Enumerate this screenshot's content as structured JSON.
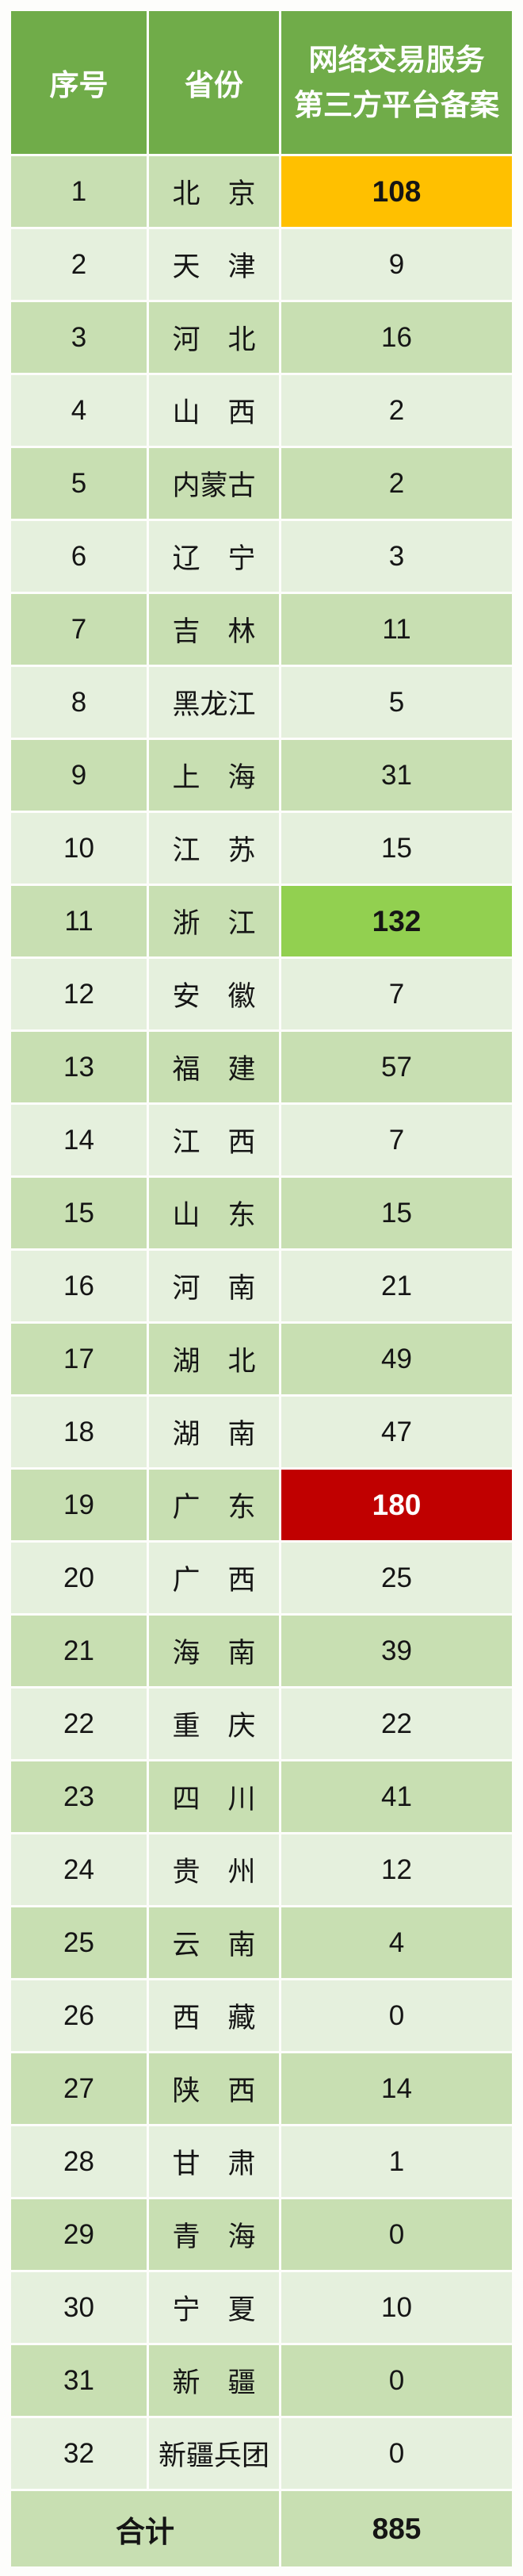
{
  "table": {
    "header": {
      "index": "序号",
      "province": "省份",
      "platform_line1": "网络交易服务",
      "platform_line2": "第三方平台备案"
    },
    "rows": [
      {
        "no": "1",
        "province": "北　京",
        "value": "108",
        "highlight": "orange"
      },
      {
        "no": "2",
        "province": "天　津",
        "value": "9"
      },
      {
        "no": "3",
        "province": "河　北",
        "value": "16"
      },
      {
        "no": "4",
        "province": "山　西",
        "value": "2"
      },
      {
        "no": "5",
        "province": "内蒙古",
        "value": "2"
      },
      {
        "no": "6",
        "province": "辽　宁",
        "value": "3"
      },
      {
        "no": "7",
        "province": "吉　林",
        "value": "11"
      },
      {
        "no": "8",
        "province": "黑龙江",
        "value": "5"
      },
      {
        "no": "9",
        "province": "上　海",
        "value": "31"
      },
      {
        "no": "10",
        "province": "江　苏",
        "value": "15"
      },
      {
        "no": "11",
        "province": "浙　江",
        "value": "132",
        "highlight": "green"
      },
      {
        "no": "12",
        "province": "安　徽",
        "value": "7"
      },
      {
        "no": "13",
        "province": "福　建",
        "value": "57"
      },
      {
        "no": "14",
        "province": "江　西",
        "value": "7"
      },
      {
        "no": "15",
        "province": "山　东",
        "value": "15"
      },
      {
        "no": "16",
        "province": "河　南",
        "value": "21"
      },
      {
        "no": "17",
        "province": "湖　北",
        "value": "49"
      },
      {
        "no": "18",
        "province": "湖　南",
        "value": "47"
      },
      {
        "no": "19",
        "province": "广　东",
        "value": "180",
        "highlight": "red"
      },
      {
        "no": "20",
        "province": "广　西",
        "value": "25"
      },
      {
        "no": "21",
        "province": "海　南",
        "value": "39"
      },
      {
        "no": "22",
        "province": "重　庆",
        "value": "22"
      },
      {
        "no": "23",
        "province": "四　川",
        "value": "41"
      },
      {
        "no": "24",
        "province": "贵　州",
        "value": "12"
      },
      {
        "no": "25",
        "province": "云　南",
        "value": "4"
      },
      {
        "no": "26",
        "province": "西　藏",
        "value": "0"
      },
      {
        "no": "27",
        "province": "陕　西",
        "value": "14"
      },
      {
        "no": "28",
        "province": "甘　肃",
        "value": "1"
      },
      {
        "no": "29",
        "province": "青　海",
        "value": "0"
      },
      {
        "no": "30",
        "province": "宁　夏",
        "value": "10"
      },
      {
        "no": "31",
        "province": "新　疆",
        "value": "0"
      },
      {
        "no": "32",
        "province": "新疆兵团",
        "value": "0"
      }
    ],
    "total": {
      "label": "合计",
      "value": "885"
    }
  },
  "chart_data": {
    "type": "table",
    "title": "网络交易服务第三方平台备案",
    "columns": [
      "序号",
      "省份",
      "网络交易服务第三方平台备案"
    ],
    "categories": [
      "北京",
      "天津",
      "河北",
      "山西",
      "内蒙古",
      "辽宁",
      "吉林",
      "黑龙江",
      "上海",
      "江苏",
      "浙江",
      "安徽",
      "福建",
      "江西",
      "山东",
      "河南",
      "湖北",
      "湖南",
      "广东",
      "广西",
      "海南",
      "重庆",
      "四川",
      "贵州",
      "云南",
      "西藏",
      "陕西",
      "甘肃",
      "青海",
      "宁夏",
      "新疆",
      "新疆兵团"
    ],
    "values": [
      108,
      9,
      16,
      2,
      2,
      3,
      11,
      5,
      31,
      15,
      132,
      7,
      57,
      7,
      15,
      21,
      49,
      47,
      180,
      25,
      39,
      22,
      41,
      12,
      4,
      0,
      14,
      1,
      0,
      10,
      0,
      0
    ],
    "total_label": "合计",
    "total_value": 885,
    "highlighted_cells": [
      {
        "category": "北京",
        "value": 108,
        "color": "#FFC000"
      },
      {
        "category": "浙江",
        "value": 132,
        "color": "#92D050"
      },
      {
        "category": "广东",
        "value": 180,
        "color": "#C00000"
      }
    ]
  },
  "colors": {
    "header_bg": "#70AC49",
    "header_text": "#FFFFFF",
    "row_dark_bg": "#C8DFB2",
    "row_light_bg": "#E5F0DD",
    "total_bg": "#C8DFB2",
    "highlight_orange": "#FFC000",
    "highlight_green": "#92D050",
    "highlight_red": "#C00000",
    "highlight_red_text": "#FFFFFF",
    "text_dark": "#151515",
    "gap_color": "#FFFFFF"
  }
}
